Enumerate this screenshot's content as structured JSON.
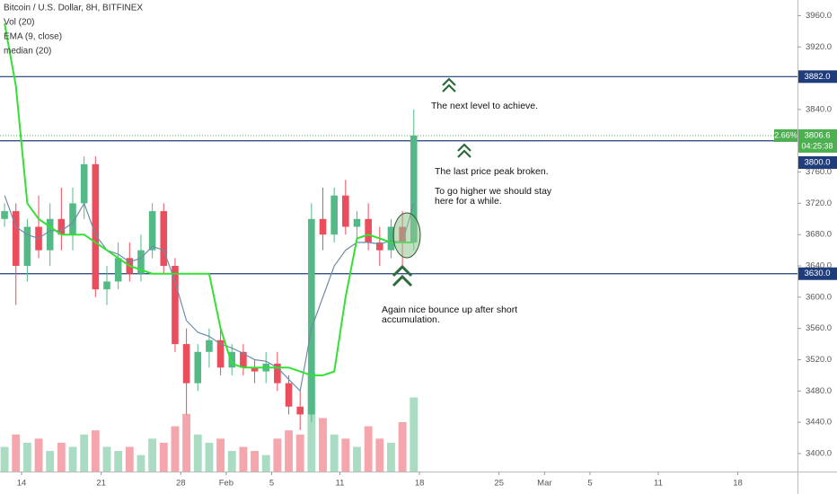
{
  "chart_data": {
    "type": "candlestick",
    "title": "Bitcoin / U.S. Dollar, 8H, BITFINEX",
    "indicators": [
      "Vol (20)",
      "EMA (9, close)",
      "median (20)"
    ],
    "x": [
      12.5,
      13.5,
      14.5,
      15.5,
      16.5,
      17.5,
      18.5,
      19.5,
      20.5,
      21.5,
      22.5,
      23.5,
      24.5,
      25.5,
      26.5,
      27.5,
      28.5,
      29.5,
      30.5,
      31.5,
      32.5,
      33.5,
      34.5,
      35.5,
      36.5,
      37.5,
      38.5,
      39.5,
      40.5,
      41.5,
      42.5,
      43.5,
      44.5,
      45.5,
      46.5,
      47.5,
      48.5
    ],
    "open": [
      3700,
      3710,
      3640,
      3690,
      3660,
      3700,
      3680,
      3720,
      3770,
      3610,
      3620,
      3650,
      3630,
      3660,
      3710,
      3640,
      3540,
      3490,
      3530,
      3545,
      3510,
      3530,
      3510,
      3505,
      3515,
      3490,
      3460,
      3450,
      3700,
      3680,
      3730,
      3690,
      3700,
      3670,
      3660,
      3690,
      3670
    ],
    "high": [
      3720,
      3720,
      3700,
      3730,
      3720,
      3740,
      3740,
      3780,
      3780,
      3640,
      3670,
      3670,
      3680,
      3720,
      3720,
      3650,
      3560,
      3540,
      3560,
      3560,
      3540,
      3540,
      3520,
      3530,
      3530,
      3500,
      3480,
      3720,
      3740,
      3740,
      3750,
      3710,
      3720,
      3690,
      3700,
      3710,
      3840
    ],
    "low": [
      3690,
      3590,
      3620,
      3650,
      3640,
      3660,
      3660,
      3700,
      3600,
      3590,
      3610,
      3620,
      3620,
      3650,
      3630,
      3530,
      3450,
      3480,
      3510,
      3500,
      3500,
      3500,
      3490,
      3490,
      3480,
      3450,
      3430,
      3440,
      3660,
      3670,
      3680,
      3670,
      3660,
      3640,
      3650,
      3640,
      3660
    ],
    "close": [
      3710,
      3640,
      3690,
      3660,
      3700,
      3680,
      3720,
      3770,
      3610,
      3620,
      3650,
      3630,
      3660,
      3710,
      3640,
      3540,
      3490,
      3530,
      3545,
      3510,
      3530,
      3510,
      3505,
      3515,
      3490,
      3460,
      3450,
      3700,
      3680,
      3730,
      3690,
      3700,
      3670,
      3660,
      3690,
      3670,
      3806.6
    ],
    "volume": [
      30,
      45,
      35,
      40,
      25,
      35,
      30,
      45,
      50,
      30,
      25,
      30,
      20,
      40,
      35,
      55,
      70,
      45,
      35,
      40,
      25,
      30,
      25,
      20,
      40,
      50,
      45,
      120,
      65,
      45,
      40,
      30,
      55,
      40,
      35,
      60,
      90
    ],
    "ema": [
      3730,
      3690,
      3680,
      3675,
      3685,
      3685,
      3695,
      3720,
      3680,
      3660,
      3655,
      3645,
      3650,
      3665,
      3660,
      3620,
      3570,
      3555,
      3550,
      3540,
      3535,
      3528,
      3520,
      3518,
      3510,
      3495,
      3480,
      3560,
      3600,
      3640,
      3660,
      3670,
      3670,
      3668,
      3672,
      3670,
      3720
    ],
    "median": [
      3950,
      3870,
      3720,
      3700,
      3690,
      3680,
      3680,
      3680,
      3670,
      3660,
      3650,
      3640,
      3635,
      3630,
      3630,
      3630,
      3630,
      3630,
      3630,
      3560,
      3515,
      3510,
      3510,
      3510,
      3510,
      3510,
      3505,
      3500,
      3500,
      3505,
      3600,
      3675,
      3680,
      3675,
      3670,
      3670,
      3670
    ],
    "up_color": "#53b987",
    "down_color": "#eb4d5c",
    "ema_color": "#6f8ba8",
    "median_color": "#33e033",
    "level_color": "#1f3d7a",
    "price_color": "#4caf50",
    "xlim": [
      12.1,
      82.25
    ],
    "xticks": [
      14,
      21,
      28,
      {
        "value": 32,
        "label": "Feb"
      },
      {
        "value": 36,
        "label": "5"
      },
      {
        "value": 42,
        "label": "11"
      },
      {
        "value": 49,
        "label": "18"
      },
      {
        "value": 56,
        "label": "25"
      },
      {
        "value": 60,
        "label": "Mar"
      },
      {
        "value": 64,
        "label": "5"
      },
      {
        "value": 70,
        "label": "11"
      },
      {
        "value": 77,
        "label": "18"
      }
    ],
    "ylim": [
      3377,
      3980
    ],
    "yticks": [
      {
        "value": 3400,
        "label": "3400.0"
      },
      {
        "value": 3440,
        "label": "3440.0"
      },
      {
        "value": 3480,
        "label": "3480.0"
      },
      {
        "value": 3520,
        "label": "3520.0"
      },
      {
        "value": 3560,
        "label": "3560.0"
      },
      {
        "value": 3600,
        "label": "3600.0"
      },
      {
        "value": 3640,
        "label": "3640.0"
      },
      {
        "value": 3680,
        "label": "3680.0"
      },
      {
        "value": 3720,
        "label": "3720.0"
      },
      {
        "value": 3760,
        "label": "3760.0"
      },
      {
        "value": 3840,
        "label": "3840.0"
      },
      {
        "value": 3920,
        "label": "3920.0"
      },
      {
        "value": 3960,
        "label": "3960.0"
      }
    ],
    "levels": [
      {
        "value": 3882,
        "label": "3882.0"
      },
      {
        "value": 3800,
        "label": "3800.0"
      },
      {
        "value": 3630,
        "label": "3630.0"
      }
    ],
    "current_price": {
      "value": 3806.6,
      "change": "2.66%",
      "countdown": "04:25:38"
    },
    "annotations": [
      {
        "lines": [
          "The next level to achieve."
        ]
      },
      {
        "lines": [
          "The last price peak broken."
        ]
      },
      {
        "lines": [
          "To go higher we should stay",
          "here for a while."
        ]
      },
      {
        "lines": [
          "Again nice bounce up after short",
          "accumulation."
        ]
      }
    ]
  }
}
